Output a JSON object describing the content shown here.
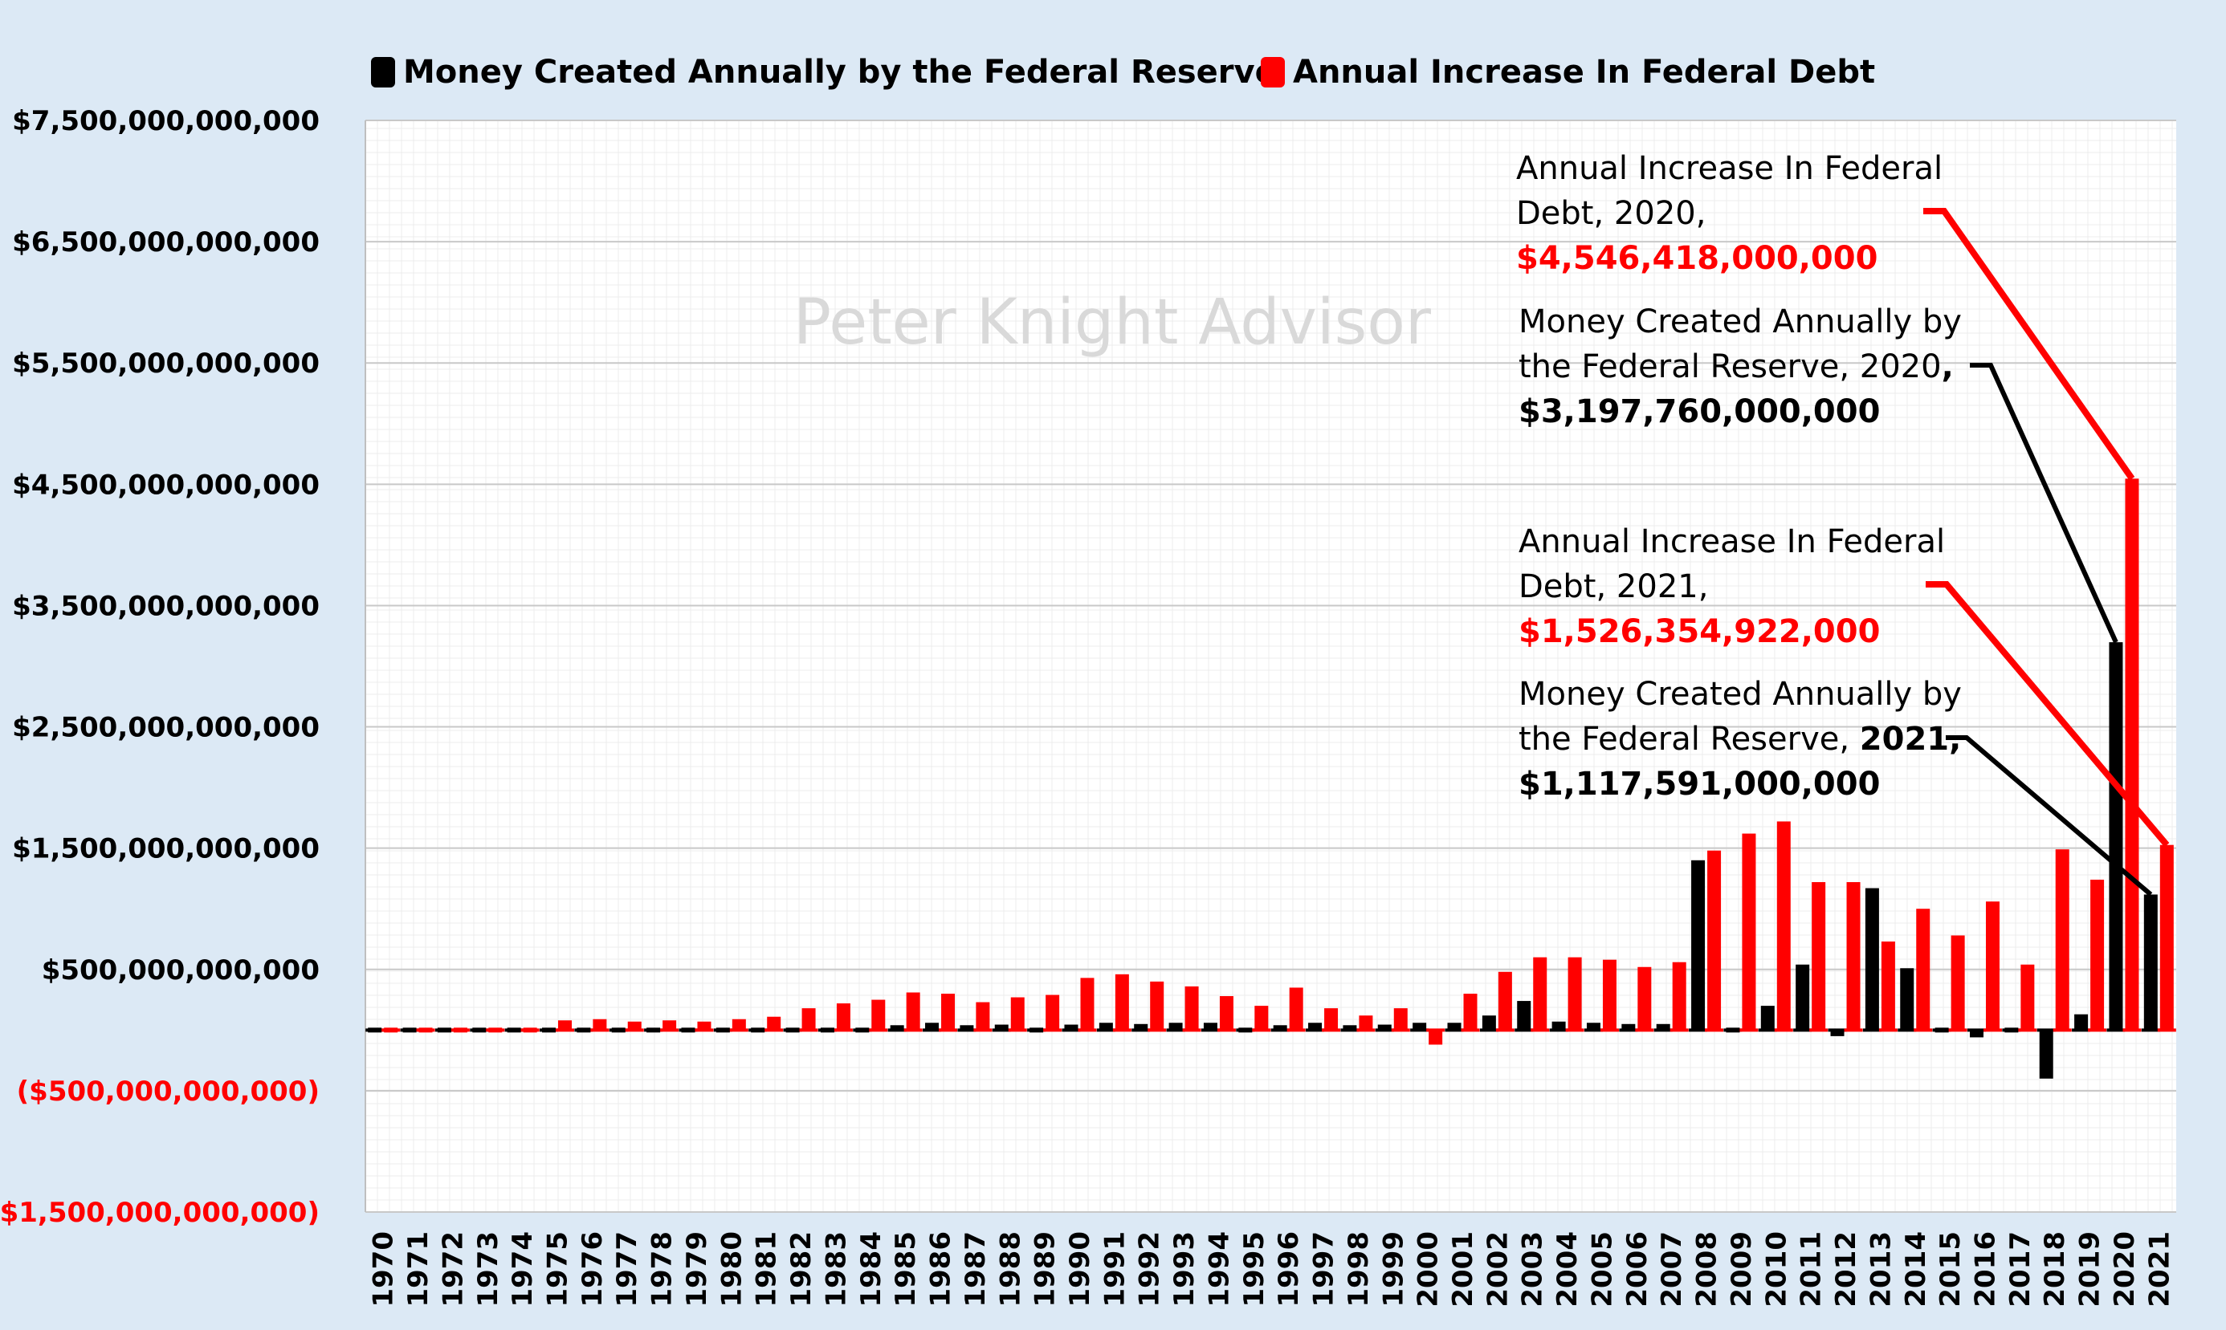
{
  "chart_data": {
    "type": "bar",
    "title": "",
    "watermark": "Peter Knight Advisor",
    "xlabel": "",
    "ylabel": "",
    "ylim": [
      -1500000000000,
      7500000000000
    ],
    "grid": true,
    "legend_position": "top",
    "y_ticks": [
      {
        "value": 7500000000000,
        "label": "$7,500,000,000,000",
        "negative": false
      },
      {
        "value": 6500000000000,
        "label": "$6,500,000,000,000",
        "negative": false
      },
      {
        "value": 5500000000000,
        "label": "$5,500,000,000,000",
        "negative": false
      },
      {
        "value": 4500000000000,
        "label": "$4,500,000,000,000",
        "negative": false
      },
      {
        "value": 3500000000000,
        "label": "$3,500,000,000,000",
        "negative": false
      },
      {
        "value": 2500000000000,
        "label": "$2,500,000,000,000",
        "negative": false
      },
      {
        "value": 1500000000000,
        "label": "$1,500,000,000,000",
        "negative": false
      },
      {
        "value": 500000000000,
        "label": "$500,000,000,000",
        "negative": false
      },
      {
        "value": -500000000000,
        "label": "($500,000,000,000)",
        "negative": true
      },
      {
        "value": -1500000000000,
        "label": "($1,500,000,000,000)",
        "negative": true
      }
    ],
    "categories": [
      "1970",
      "1971",
      "1972",
      "1973",
      "1974",
      "1975",
      "1976",
      "1977",
      "1978",
      "1979",
      "1980",
      "1981",
      "1982",
      "1983",
      "1984",
      "1985",
      "1986",
      "1987",
      "1988",
      "1989",
      "1990",
      "1991",
      "1992",
      "1993",
      "1994",
      "1995",
      "1996",
      "1997",
      "1998",
      "1999",
      "2000",
      "2001",
      "2002",
      "2003",
      "2004",
      "2005",
      "2006",
      "2007",
      "2008",
      "2009",
      "2010",
      "2011",
      "2012",
      "2013",
      "2014",
      "2015",
      "2016",
      "2017",
      "2018",
      "2019",
      "2020",
      "2021"
    ],
    "series": [
      {
        "name": "Money Created Annually by the Federal Reserve",
        "color": "#000000",
        "values": [
          5000000000,
          10000000000,
          10000000000,
          15000000000,
          15000000000,
          15000000000,
          20000000000,
          20000000000,
          20000000000,
          20000000000,
          25000000000,
          20000000000,
          25000000000,
          30000000000,
          30000000000,
          40000000000,
          60000000000,
          40000000000,
          45000000000,
          -30000000000,
          45000000000,
          60000000000,
          50000000000,
          60000000000,
          60000000000,
          30000000000,
          40000000000,
          60000000000,
          40000000000,
          45000000000,
          60000000000,
          60000000000,
          120000000000,
          240000000000,
          70000000000,
          60000000000,
          50000000000,
          50000000000,
          1400000000000,
          -10000000000,
          200000000000,
          540000000000,
          -50000000000,
          1170000000000,
          510000000000,
          -30000000000,
          -60000000000,
          -20000000000,
          -400000000000,
          130000000000,
          3197760000000,
          1117591000000
        ]
      },
      {
        "name": "Annual Increase In Federal Debt",
        "color": "#ff0000",
        "values": [
          20000000000,
          30000000000,
          30000000000,
          30000000000,
          30000000000,
          80000000000,
          90000000000,
          70000000000,
          80000000000,
          70000000000,
          90000000000,
          110000000000,
          180000000000,
          220000000000,
          250000000000,
          310000000000,
          300000000000,
          230000000000,
          270000000000,
          290000000000,
          430000000000,
          460000000000,
          400000000000,
          360000000000,
          280000000000,
          200000000000,
          350000000000,
          180000000000,
          120000000000,
          180000000000,
          -120000000000,
          300000000000,
          480000000000,
          600000000000,
          600000000000,
          580000000000,
          520000000000,
          560000000000,
          1480000000000,
          1620000000000,
          1720000000000,
          1220000000000,
          1220000000000,
          730000000000,
          1000000000000,
          780000000000,
          1060000000000,
          540000000000,
          1490000000000,
          1240000000000,
          4546418000000,
          1526354922000
        ]
      }
    ],
    "annotations": [
      {
        "line1": "Annual Increase In Federal",
        "line2": "Debt, 2020,",
        "bold_segment": "",
        "value_label": "$4,546,418,000,000",
        "color": "#ff0000",
        "series_index": 1,
        "category": "2020"
      },
      {
        "line1": "Money Created Annually by",
        "line2": "the Federal Reserve, 2020",
        "bold_segment": ",",
        "value_label": "$3,197,760,000,000",
        "color": "#000000",
        "series_index": 0,
        "category": "2020"
      },
      {
        "line1": "Annual Increase In Federal",
        "line2": "Debt, 2021,",
        "bold_segment": "",
        "value_label": "$1,526,354,922,000",
        "color": "#ff0000",
        "series_index": 1,
        "category": "2021"
      },
      {
        "line1": "Money Created Annually by",
        "line2": "the Federal Reserve, ",
        "bold_segment": "2021,",
        "value_label": "$1,117,591,000,000",
        "color": "#000000",
        "series_index": 0,
        "category": "2021"
      }
    ]
  }
}
